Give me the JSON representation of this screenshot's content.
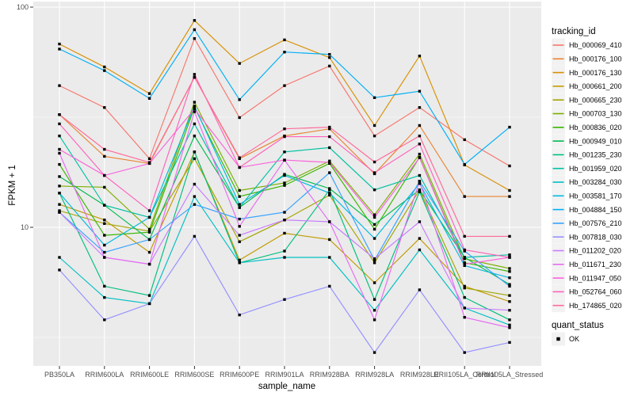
{
  "figure": {
    "colors": {
      "background": "#FFFFFF",
      "panel": "#EBEBEB",
      "grid": "#FFFFFF",
      "point": "#000000",
      "axis_text": "#4D4D4D",
      "tick_mark": "#333333",
      "legend_key_bg": "#F2F2F2",
      "title_text": "#000000"
    }
  },
  "chart_data": {
    "type": "line",
    "xlabel": "sample_name",
    "ylabel": "FPKM + 1",
    "y_scale": "log10",
    "y_ticks": [
      {
        "label": "100",
        "value": 100
      },
      {
        "label": "10",
        "value": 10
      }
    ],
    "y_minor": [
      31.62,
      3.162
    ],
    "ylim": [
      2.3,
      110
    ],
    "grid": true,
    "legend_position": "right",
    "point_shape": "black-square",
    "categories": [
      "PB350LA",
      "RRIM600LA",
      "RRIM600LE",
      "RRIM600SE",
      "RRIM600PE",
      "RRIM901LA",
      "RRIM928BA",
      "RRIM928LA",
      "RRIM928LE",
      "RRII105LA_Control",
      "RRII105LA_Stressed"
    ],
    "series": [
      {
        "name": "Hb_000069_410",
        "color": "#F8766D",
        "values": [
          44,
          35,
          20.5,
          72,
          31.5,
          44,
          54,
          26,
          35,
          25,
          19
        ]
      },
      {
        "name": "Hb_000176_100",
        "color": "#EA8331",
        "values": [
          32.5,
          21,
          19.5,
          48,
          20.5,
          26,
          28,
          17.5,
          29,
          13.8,
          13.8
        ]
      },
      {
        "name": "Hb_000176_130",
        "color": "#D89000",
        "values": [
          68,
          53.5,
          40.5,
          87,
          55.5,
          71,
          59,
          29,
          60,
          19.2,
          14.7
        ]
      },
      {
        "name": "Hb_000661_200",
        "color": "#C09B00",
        "values": [
          12.7,
          10.8,
          7.7,
          22,
          7.1,
          9.4,
          8.8,
          5.6,
          8.9,
          5.4,
          4.6
        ]
      },
      {
        "name": "Hb_000665_230",
        "color": "#A3A500",
        "values": [
          11.9,
          10.4,
          9.6,
          20.5,
          8.6,
          10.8,
          14,
          6.9,
          14.8,
          5.3,
          4.9
        ]
      },
      {
        "name": "Hb_000703_130",
        "color": "#7CAE00",
        "values": [
          15.4,
          15.2,
          9.8,
          37,
          14.7,
          15.9,
          20,
          11.4,
          21.5,
          7.2,
          6.5
        ]
      },
      {
        "name": "Hb_000836_020",
        "color": "#39B600",
        "values": [
          19.3,
          9.2,
          9.5,
          35,
          13.8,
          15.5,
          19.5,
          9.8,
          20.8,
          6.9,
          6.3
        ]
      },
      {
        "name": "Hb_000949_010",
        "color": "#00BB4E",
        "values": [
          17,
          12.6,
          8.8,
          26,
          12.3,
          17.4,
          15,
          10.3,
          14.8,
          7.3,
          5.5
        ]
      },
      {
        "name": "Hb_001235_230",
        "color": "#00BF7D",
        "values": [
          14.3,
          5.4,
          4.9,
          22,
          6.9,
          7.8,
          14.8,
          4.7,
          14.5,
          4.8,
          3.8
        ]
      },
      {
        "name": "Hb_001959_020",
        "color": "#00C1A3",
        "values": [
          26,
          12.6,
          11.1,
          29.5,
          12.3,
          22,
          23,
          14.8,
          17.2,
          7.3,
          7.5
        ]
      },
      {
        "name": "Hb_003284_030",
        "color": "#00BFC4",
        "values": [
          7.3,
          4.8,
          4.5,
          13.8,
          6.9,
          7.3,
          7.3,
          4.2,
          7.9,
          4.3,
          3.6
        ]
      },
      {
        "name": "Hb_003581_170",
        "color": "#00BAE0",
        "values": [
          14.3,
          8.3,
          11.1,
          35.5,
          12.7,
          17.2,
          14.3,
          8.9,
          15.8,
          6.7,
          5.9
        ]
      },
      {
        "name": "Hb_004884_150",
        "color": "#00B0F6",
        "values": [
          64.5,
          51.5,
          38.5,
          79,
          38,
          62.5,
          61,
          38.8,
          41.5,
          19.3,
          28.5
        ]
      },
      {
        "name": "Hb_007576_210",
        "color": "#35A2FF",
        "values": [
          11.7,
          7.7,
          8.8,
          12.7,
          10.9,
          11.7,
          17.7,
          7.1,
          16.2,
          7.8,
          5.4
        ]
      },
      {
        "name": "Hb_007818_030",
        "color": "#9590FF",
        "values": [
          6.4,
          3.8,
          4.5,
          9.1,
          4.0,
          4.7,
          5.4,
          2.7,
          5.2,
          2.7,
          3.0
        ]
      },
      {
        "name": "Hb_011202_020",
        "color": "#C77CFF",
        "values": [
          11.7,
          7.3,
          6.8,
          15.7,
          9.2,
          10.8,
          10.6,
          7.2,
          10.6,
          4.3,
          4.2
        ]
      },
      {
        "name": "Hb_011671_230",
        "color": "#E76BF3",
        "values": [
          21.7,
          7.3,
          6.8,
          33.5,
          10.1,
          20.2,
          10.6,
          3.8,
          16.2,
          3.9,
          3.5
        ]
      },
      {
        "name": "Hb_011947_050",
        "color": "#FA62DB",
        "values": [
          22.6,
          17.2,
          19.5,
          34.5,
          18.7,
          20.2,
          19.7,
          11.1,
          20.7,
          6.8,
          7.3
        ]
      },
      {
        "name": "Hb_052764_060",
        "color": "#FF62BC",
        "values": [
          29.5,
          17.2,
          11.9,
          49.5,
          18.7,
          25.8,
          25.8,
          17.7,
          23.9,
          7.9,
          7.3
        ]
      },
      {
        "name": "Hb_174865_020",
        "color": "#FF6A98",
        "values": [
          32.5,
          22.6,
          19.7,
          48,
          20.7,
          28,
          28.5,
          19.8,
          26,
          9.1,
          9.1
        ]
      }
    ],
    "legend": {
      "title": "tracking_id",
      "quant_title": "quant_status",
      "quant_items": [
        {
          "label": "OK"
        }
      ]
    }
  }
}
